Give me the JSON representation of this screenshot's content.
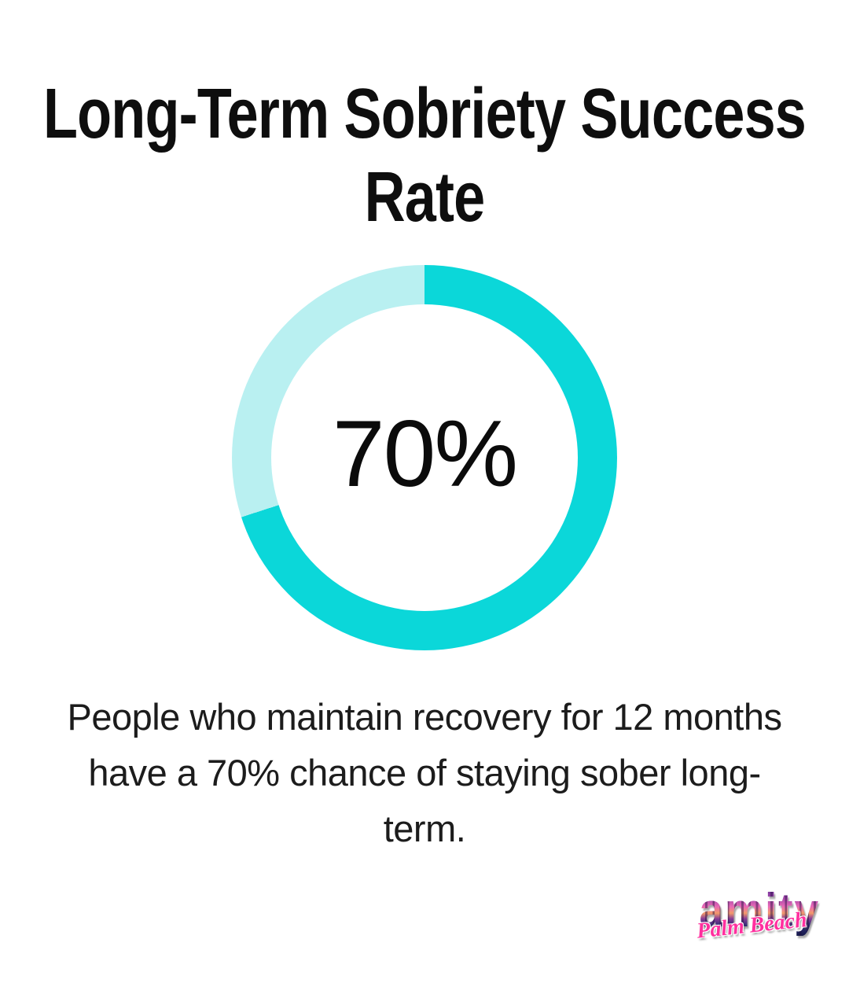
{
  "header": {
    "title": "Long-Term Sobriety Success Rate",
    "title_lines": [
      "Long-Term Sobriety Success",
      "Rate"
    ]
  },
  "chart_data": {
    "type": "pie",
    "donut": true,
    "title": "Long-Term Sobriety Success Rate",
    "center_label": "70%",
    "segments": [
      {
        "name": "long-term-sobriety-success",
        "value": 70,
        "color": "#0bd7d9"
      },
      {
        "name": "remainder",
        "value": 30,
        "color": "#b9f0f1"
      }
    ],
    "start_angle_deg": 0,
    "direction": "clockwise",
    "inner_radius_ratio": 0.8,
    "legend_position": "none"
  },
  "description": {
    "text": "People who maintain recovery for 12 months have a 70% chance of staying sober long-term.",
    "lines": [
      "People who maintain recovery for 12 months",
      "have a 70% chance of staying sober long-",
      "term."
    ]
  },
  "logo": {
    "brand": "amity",
    "tagline": "Palm Beach"
  },
  "colors": {
    "background": "#ffffff",
    "title_text": "#0e0e0e",
    "body_text": "#1c1c1c",
    "donut_primary": "#0bd7d9",
    "donut_secondary": "#b9f0f1",
    "logo_pink": "#ff2f9e"
  }
}
